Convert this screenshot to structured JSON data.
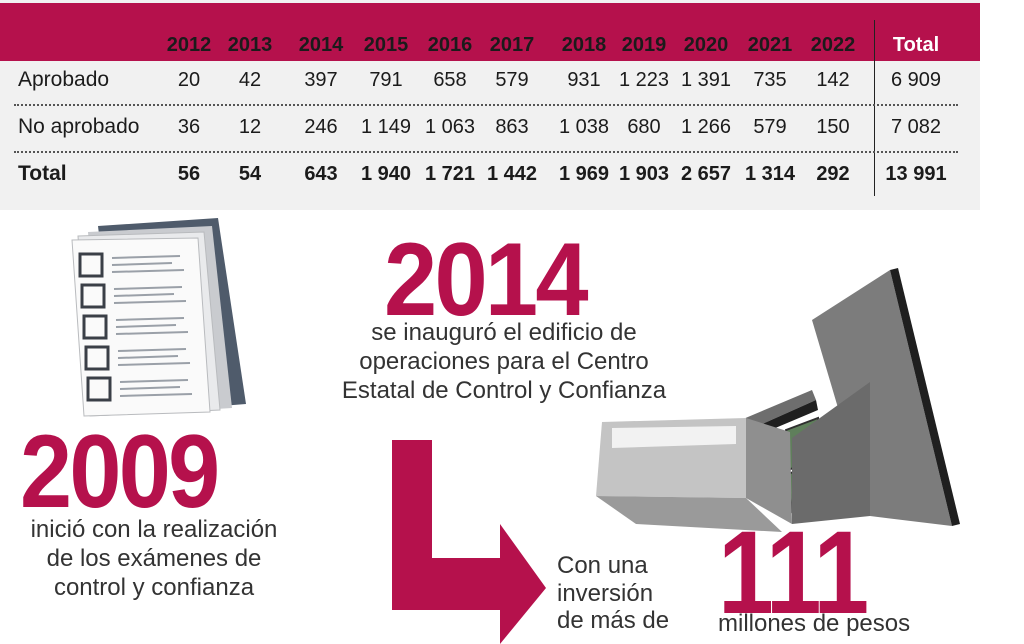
{
  "table": {
    "columns": [
      "2012",
      "2013",
      "2014",
      "2015",
      "2016",
      "2017",
      "2018",
      "2019",
      "2020",
      "2021",
      "2022",
      "Total"
    ],
    "rows": [
      {
        "label": "Aprobado",
        "values": [
          "20",
          "42",
          "397",
          "791",
          "658",
          "579",
          "931",
          "1 223",
          "1 391",
          "735",
          "142",
          "6 909"
        ]
      },
      {
        "label": "No aprobado",
        "values": [
          "36",
          "12",
          "246",
          "1 149",
          "1 063",
          "863",
          "1 038",
          "680",
          "1 266",
          "579",
          "150",
          "7 082"
        ]
      },
      {
        "label": "Total",
        "values": [
          "56",
          "54",
          "643",
          "1 940",
          "1 721",
          "1 442",
          "1 969",
          "1 903",
          "2 657",
          "1 314",
          "292",
          "13 991"
        ]
      }
    ]
  },
  "milestone_2009": {
    "year": "2009",
    "caption_lines": [
      "inició con la realización",
      "de los exámenes de",
      "control y confianza"
    ]
  },
  "milestone_2014": {
    "year": "2014",
    "caption_lines": [
      "se inauguró el edificio de",
      "operaciones para el Centro",
      "Estatal de Control y Confianza"
    ]
  },
  "investment": {
    "intro_lines": [
      "Con una",
      "inversión",
      "de más de"
    ],
    "amount": "111",
    "unit": "millones de pesos"
  },
  "colors": {
    "accent": "#b5114c",
    "panel": "#f1f1f1",
    "text": "#333333"
  },
  "icons": [
    "checklist-documents-icon",
    "building-illustration",
    "arrow-down-right-icon"
  ]
}
